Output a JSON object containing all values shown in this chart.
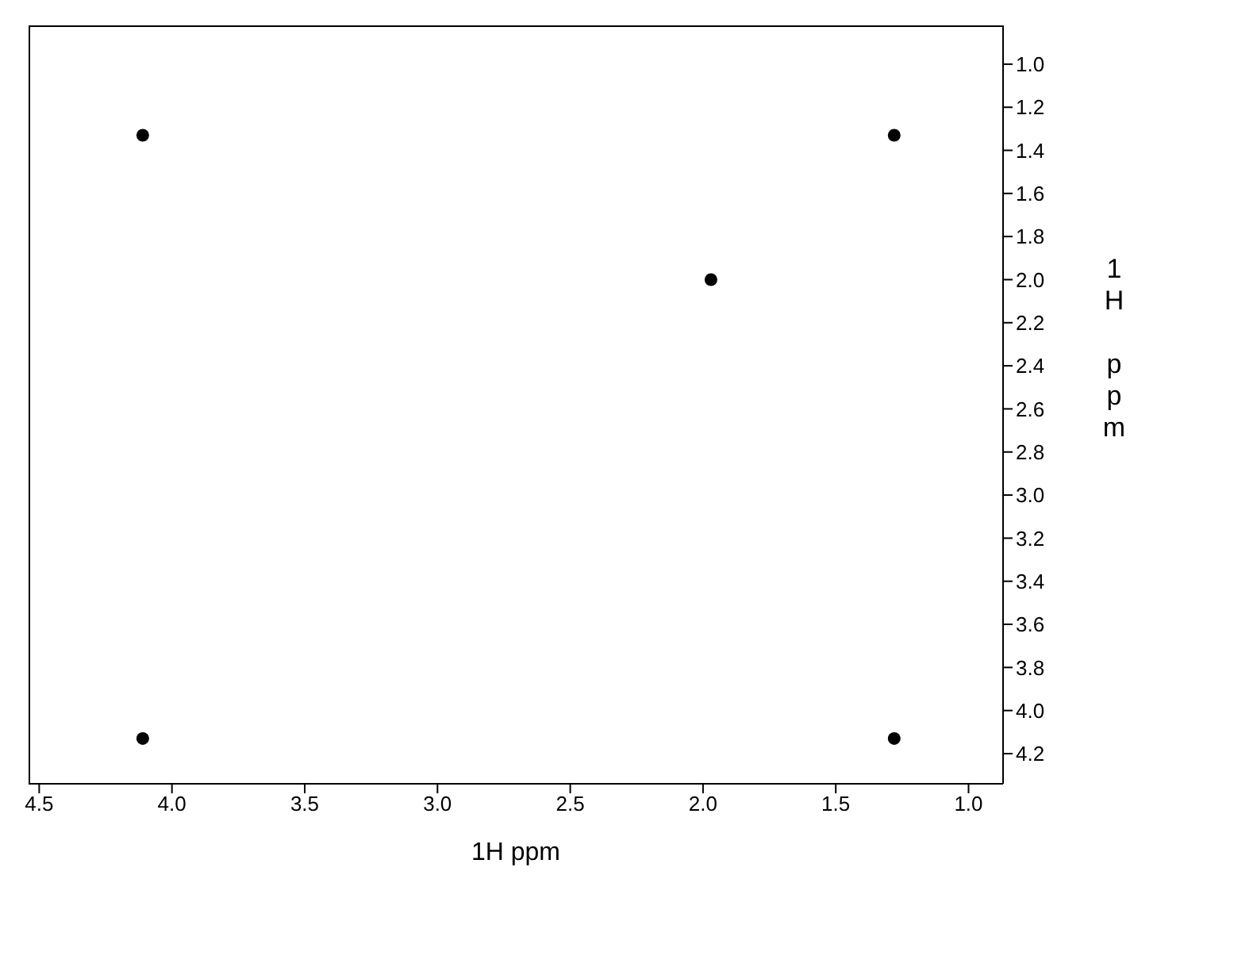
{
  "chart_data": {
    "type": "scatter",
    "xlabel": "1H ppm",
    "ylabel": "1H ppm",
    "x": [
      4.11,
      1.28,
      1.97,
      4.11,
      1.28
    ],
    "series": [
      {
        "color": "#000000",
        "values": [
          1.33,
          1.33,
          2.0,
          4.13,
          4.13
        ]
      }
    ],
    "xlim": [
      4.54,
      0.87
    ],
    "ylim": [
      4.34,
      0.82
    ],
    "xticks": [
      4.5,
      {
        "value": 4,
        "label": "4.0"
      },
      3.5,
      {
        "value": 3,
        "label": "3.0"
      },
      2.5,
      {
        "value": 2,
        "label": "2.0"
      },
      1.5,
      {
        "value": 1,
        "label": "1.0"
      }
    ],
    "yticks": [
      {
        "value": 1,
        "label": "1.0"
      },
      1.2,
      1.4,
      1.6,
      1.8,
      {
        "value": 2,
        "label": "2.0"
      },
      2.2,
      2.4,
      2.6,
      2.8,
      {
        "value": 3,
        "label": "3.0"
      },
      3.2,
      3.4,
      3.6,
      3.8,
      {
        "value": 4,
        "label": "4.0"
      },
      4.2
    ],
    "grid": false,
    "legend": false,
    "marker": "circle"
  }
}
